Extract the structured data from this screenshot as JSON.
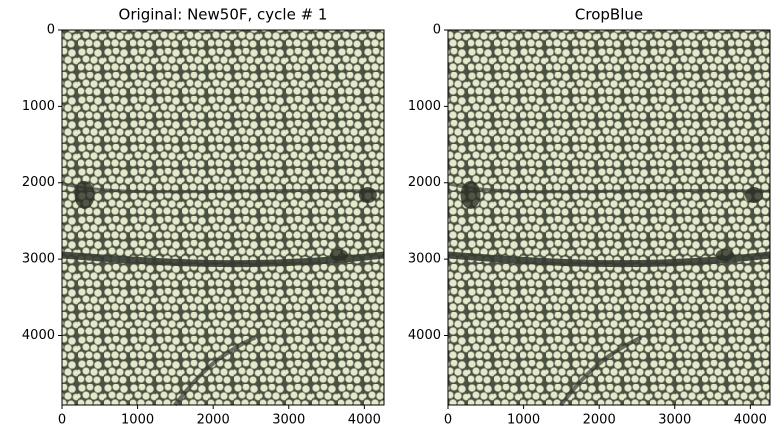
{
  "chart_data": [
    {
      "type": "image",
      "title": "Original: New50F, cycle # 1",
      "xlim": [
        0,
        4260
      ],
      "ylim": [
        4910,
        0
      ],
      "xticks": [
        0,
        1000,
        2000,
        3000,
        4000
      ],
      "yticks": [
        0,
        1000,
        2000,
        3000,
        4000
      ]
    },
    {
      "type": "image",
      "title": "CropBlue",
      "xlim": [
        0,
        4260
      ],
      "ylim": [
        4910,
        0
      ],
      "xticks": [
        0,
        1000,
        2000,
        3000,
        4000
      ],
      "yticks": [
        0,
        1000,
        2000,
        3000,
        4000
      ]
    }
  ]
}
